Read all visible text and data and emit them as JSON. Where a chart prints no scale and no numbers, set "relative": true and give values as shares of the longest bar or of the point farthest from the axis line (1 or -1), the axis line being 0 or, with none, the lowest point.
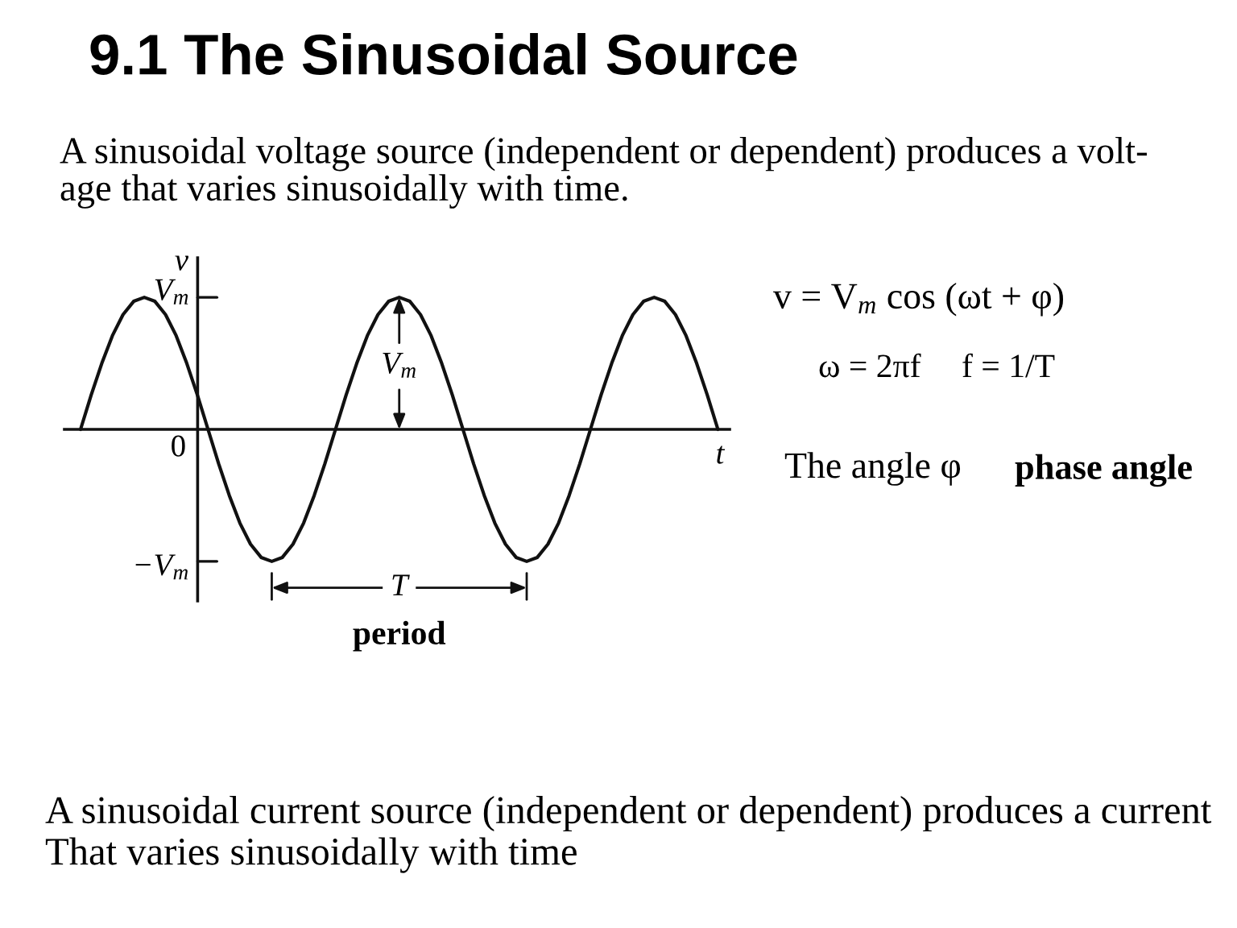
{
  "chart_data": {
    "type": "line",
    "title": "9.1 The Sinusoidal Source",
    "subtitle": "A sinusoidal voltage source (independent or dependent) produces a volt-\nage that varies sinusoidally with time.",
    "xlabel": "t",
    "ylabel": "v",
    "relative": true,
    "categories": [
      null,
      null,
      null,
      null,
      null,
      null,
      null,
      null,
      null,
      null,
      null,
      null,
      null,
      null,
      null,
      null,
      null,
      null,
      null,
      null,
      null,
      null,
      null,
      null,
      null,
      null,
      null,
      null,
      null,
      null,
      null,
      null,
      null,
      null,
      null,
      null,
      null,
      null,
      null,
      null,
      null,
      null,
      null,
      null,
      null,
      null,
      null,
      null,
      null,
      null,
      null,
      null,
      null,
      null,
      null,
      null,
      null,
      null,
      null,
      null,
      null
    ],
    "series": [
      {
        "color": "#111111",
        "values": [
          0,
          0.26,
          0.5,
          0.71,
          0.87,
          0.97,
          1,
          0.97,
          0.87,
          0.71,
          0.5,
          0.26,
          0,
          -0.26,
          -0.5,
          -0.71,
          -0.87,
          -0.97,
          -1,
          -0.97,
          -0.87,
          -0.71,
          -0.5,
          -0.26,
          0,
          0.26,
          0.5,
          0.71,
          0.87,
          0.97,
          1,
          0.97,
          0.87,
          0.71,
          0.5,
          0.26,
          0,
          -0.26,
          -0.5,
          -0.71,
          -0.87,
          -0.97,
          -1,
          -0.97,
          -0.87,
          -0.71,
          -0.5,
          -0.26,
          0,
          0.26,
          0.5,
          0.71,
          0.87,
          0.97,
          1,
          0.97,
          0.87,
          0.71,
          0.5,
          0.26,
          0
        ]
      }
    ],
    "annotations": [
      "V$_{m}$",
      "0",
      "−V$_{m}$",
      "V$_{m}$",
      "T",
      "period",
      "v = V$_{m}$ cos (ωt + φ)",
      "ω = 2πf",
      "f = 1/T",
      "The angle φ",
      "phase angle",
      "A sinusoidal current source (independent or dependent) produces a current\nThat varies sinusoidally with time"
    ]
  }
}
